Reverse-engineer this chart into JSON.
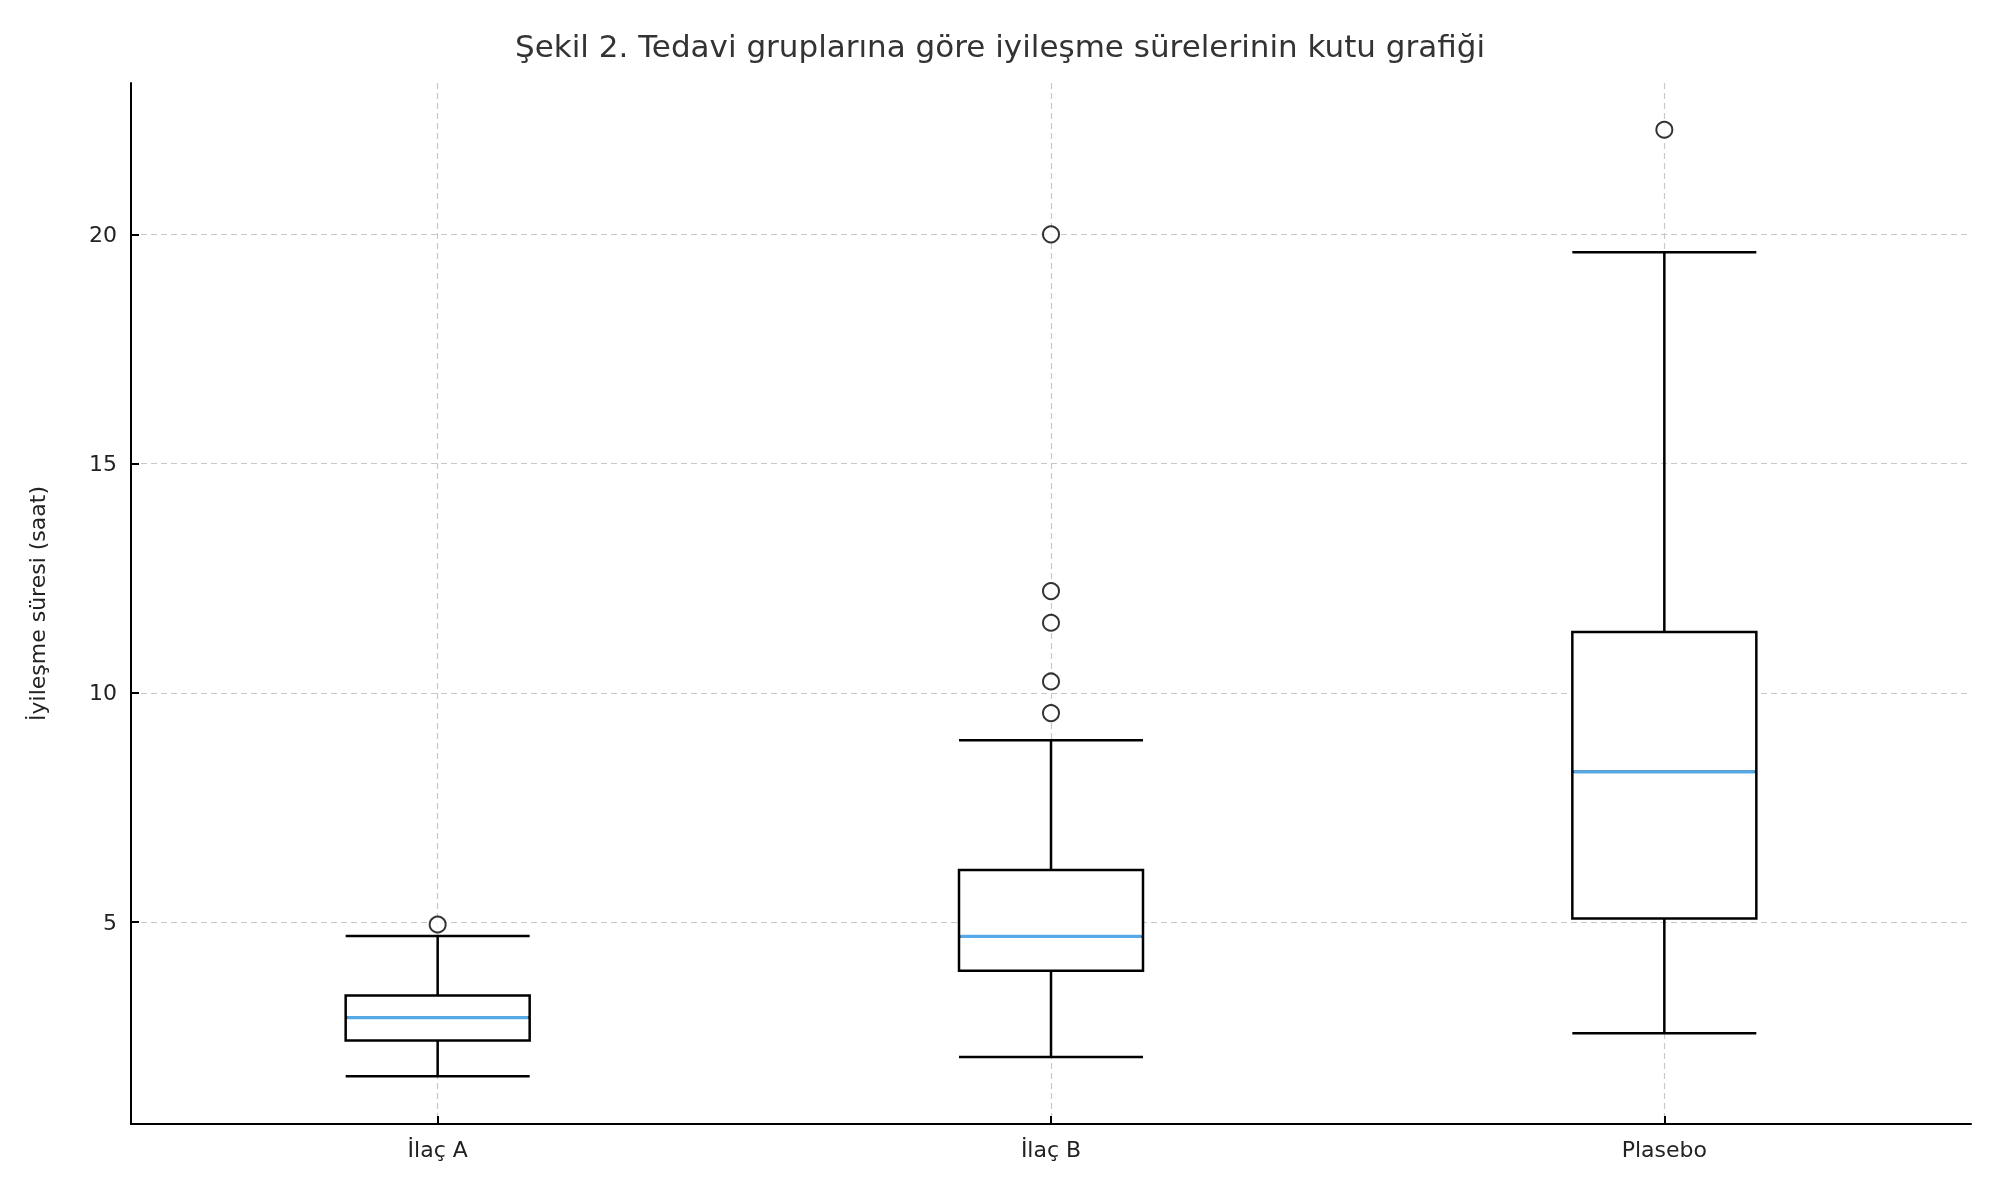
{
  "chart_data": {
    "type": "box",
    "title": "Şekil 2. Tedavi gruplarına göre iyileşme sürelerinin kutu grafiği",
    "ylabel": "İyileşme süresi (saat)",
    "categories": [
      "İlaç A",
      "İlaç B",
      "Plasebo"
    ],
    "color": "#000000",
    "boxes": [
      {
        "low": 1.64,
        "q1": 2.42,
        "median": 2.92,
        "q3": 3.4,
        "high": 4.7,
        "outliers": [
          4.95
        ]
      },
      {
        "low": 2.06,
        "q1": 3.94,
        "median": 4.69,
        "q3": 6.14,
        "high": 8.97,
        "outliers": [
          9.56,
          10.25,
          11.53,
          12.22,
          20.0
        ]
      },
      {
        "low": 2.58,
        "q1": 5.08,
        "median": 8.28,
        "q3": 11.33,
        "high": 19.61,
        "outliers": [
          22.28
        ]
      }
    ],
    "ylim": [
      0.6,
      23.3
    ],
    "yticks": [
      5,
      10,
      15,
      20
    ],
    "grid": true,
    "marker": "circle"
  }
}
